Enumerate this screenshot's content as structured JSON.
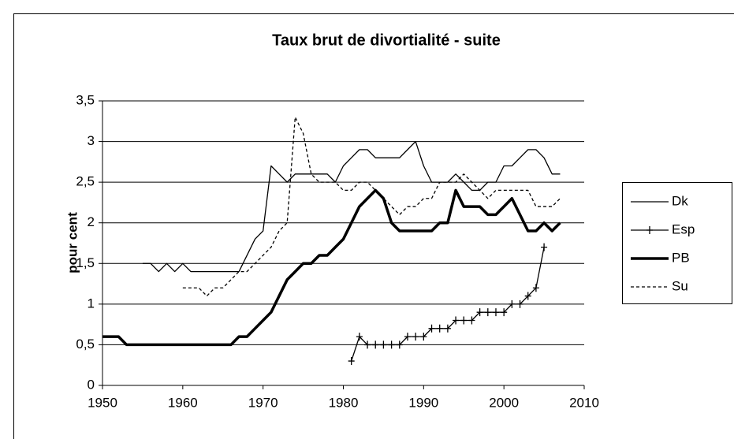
{
  "chart_data": {
    "type": "line",
    "title": "Taux brut de divortialité - suite",
    "y_label": "pour cent",
    "x": [
      1950,
      1951,
      1952,
      1953,
      1954,
      1955,
      1956,
      1957,
      1958,
      1959,
      1960,
      1961,
      1962,
      1963,
      1964,
      1965,
      1966,
      1967,
      1968,
      1969,
      1970,
      1971,
      1972,
      1973,
      1974,
      1975,
      1976,
      1977,
      1978,
      1979,
      1980,
      1981,
      1982,
      1983,
      1984,
      1985,
      1986,
      1987,
      1988,
      1989,
      1990,
      1991,
      1992,
      1993,
      1994,
      1995,
      1996,
      1997,
      1998,
      1999,
      2000,
      2001,
      2002,
      2003,
      2004,
      2005,
      2006,
      2007
    ],
    "series": [
      {
        "name": "Dk",
        "color": "#000000",
        "width": 1.3,
        "dash": "none",
        "marker": "none",
        "values": [
          null,
          null,
          null,
          null,
          null,
          1.5,
          1.5,
          1.4,
          1.5,
          1.4,
          1.5,
          1.4,
          1.4,
          1.4,
          1.4,
          1.4,
          1.4,
          1.4,
          1.6,
          1.8,
          1.9,
          2.7,
          2.6,
          2.5,
          2.6,
          2.6,
          2.6,
          2.6,
          2.6,
          2.5,
          2.7,
          2.8,
          2.9,
          2.9,
          2.8,
          2.8,
          2.8,
          2.8,
          2.9,
          3.0,
          2.7,
          2.5,
          2.5,
          2.5,
          2.6,
          2.5,
          2.4,
          2.4,
          2.5,
          2.5,
          2.7,
          2.7,
          2.8,
          2.9,
          2.9,
          2.8,
          2.6,
          2.6
        ]
      },
      {
        "name": "Esp",
        "color": "#000000",
        "width": 1.3,
        "dash": "none",
        "marker": "plus",
        "values": [
          null,
          null,
          null,
          null,
          null,
          null,
          null,
          null,
          null,
          null,
          null,
          null,
          null,
          null,
          null,
          null,
          null,
          null,
          null,
          null,
          null,
          null,
          null,
          null,
          null,
          null,
          null,
          null,
          null,
          null,
          null,
          0.3,
          0.6,
          0.5,
          0.5,
          0.5,
          0.5,
          0.5,
          0.6,
          0.6,
          0.6,
          0.7,
          0.7,
          0.7,
          0.8,
          0.8,
          0.8,
          0.9,
          0.9,
          0.9,
          0.9,
          1.0,
          1.0,
          1.1,
          1.2,
          1.7,
          null,
          null
        ]
      },
      {
        "name": "PB",
        "color": "#000000",
        "width": 3.5,
        "dash": "none",
        "marker": "none",
        "values": [
          0.6,
          0.6,
          0.6,
          0.5,
          0.5,
          0.5,
          0.5,
          0.5,
          0.5,
          0.5,
          0.5,
          0.5,
          0.5,
          0.5,
          0.5,
          0.5,
          0.5,
          0.6,
          0.6,
          0.7,
          0.8,
          0.9,
          1.1,
          1.3,
          1.4,
          1.5,
          1.5,
          1.6,
          1.6,
          1.7,
          1.8,
          2.0,
          2.2,
          2.3,
          2.4,
          2.3,
          2.0,
          1.9,
          1.9,
          1.9,
          1.9,
          1.9,
          2.0,
          2.0,
          2.4,
          2.2,
          2.2,
          2.2,
          2.1,
          2.1,
          2.2,
          2.3,
          2.1,
          1.9,
          1.9,
          2.0,
          1.9,
          2.0
        ]
      },
      {
        "name": "Su",
        "color": "#000000",
        "width": 1.3,
        "dash": "4 3",
        "marker": "none",
        "values": [
          null,
          null,
          null,
          null,
          null,
          null,
          null,
          null,
          null,
          null,
          1.2,
          1.2,
          1.2,
          1.1,
          1.2,
          1.2,
          1.3,
          1.4,
          1.4,
          1.5,
          1.6,
          1.7,
          1.9,
          2.0,
          3.3,
          3.1,
          2.6,
          2.5,
          2.5,
          2.5,
          2.4,
          2.4,
          2.5,
          2.5,
          2.4,
          2.3,
          2.2,
          2.1,
          2.2,
          2.2,
          2.3,
          2.3,
          2.5,
          2.5,
          2.5,
          2.6,
          2.5,
          2.4,
          2.3,
          2.4,
          2.4,
          2.4,
          2.4,
          2.4,
          2.2,
          2.2,
          2.2,
          2.3
        ]
      }
    ],
    "xlim": [
      1950,
      2010
    ],
    "xticks": [
      1950,
      1960,
      1970,
      1980,
      1990,
      2000,
      2010
    ],
    "ylim": [
      0,
      3.5
    ],
    "yticks": [
      0,
      {
        "value": 0.5,
        "label": "0,5"
      },
      1,
      {
        "value": 1.5,
        "label": "1,5"
      },
      2,
      {
        "value": 2.5,
        "label": "2,5"
      },
      3,
      {
        "value": 3.5,
        "label": "3,5"
      }
    ],
    "grid": true,
    "legend": "right"
  }
}
